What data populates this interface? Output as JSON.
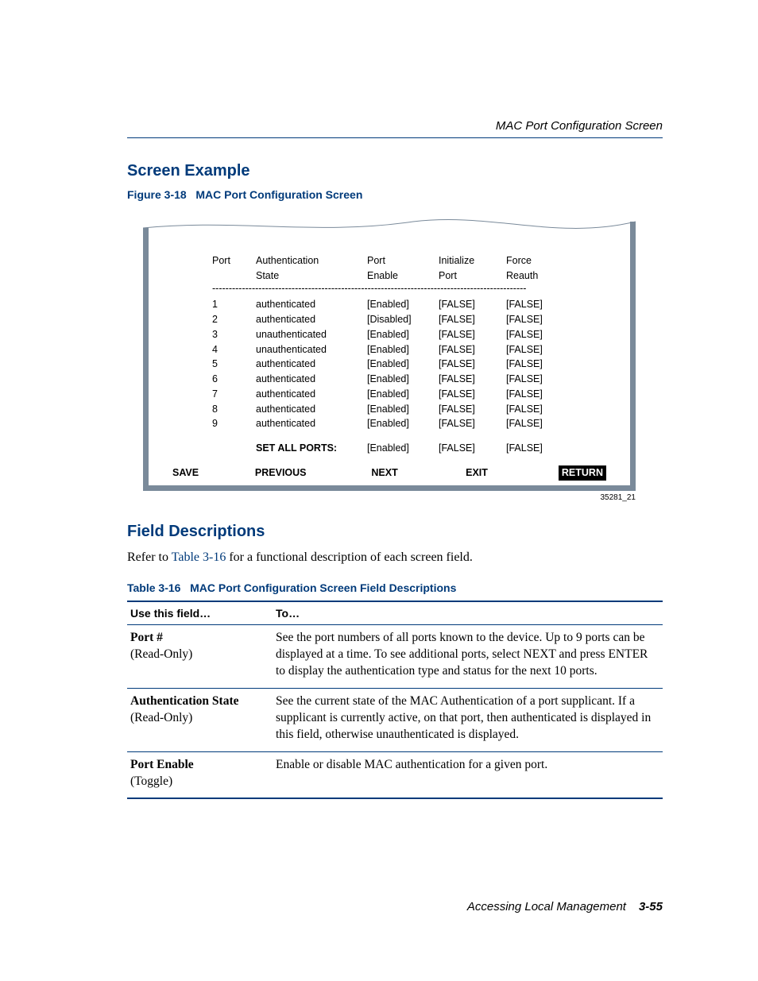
{
  "header": {
    "running_title": "MAC Port Configuration Screen"
  },
  "section1": {
    "title": "Screen Example"
  },
  "figure": {
    "caption_label": "Figure 3-18",
    "caption_text": "MAC Port Configuration Screen",
    "id": "35281_21",
    "headers": {
      "port": "Port",
      "auth_state_l1": "Authentication",
      "auth_state_l2": "State",
      "port_enable_l1": "Port",
      "port_enable_l2": "Enable",
      "init_l1": "Initialize",
      "init_l2": "Port",
      "force_l1": "Force",
      "force_l2": "Reauth"
    },
    "rows": [
      {
        "port": "1",
        "auth": "authenticated",
        "enable": "[Enabled]",
        "init": "[FALSE]",
        "force": "[FALSE]"
      },
      {
        "port": "2",
        "auth": "authenticated",
        "enable": "[Disabled]",
        "init": "[FALSE]",
        "force": "[FALSE]"
      },
      {
        "port": "3",
        "auth": "unauthenticated",
        "enable": "[Enabled]",
        "init": "[FALSE]",
        "force": "[FALSE]"
      },
      {
        "port": "4",
        "auth": "unauthenticated",
        "enable": "[Enabled]",
        "init": "[FALSE]",
        "force": "[FALSE]"
      },
      {
        "port": "5",
        "auth": "authenticated",
        "enable": "[Enabled]",
        "init": "[FALSE]",
        "force": "[FALSE]"
      },
      {
        "port": "6",
        "auth": "authenticated",
        "enable": "[Enabled]",
        "init": "[FALSE]",
        "force": "[FALSE]"
      },
      {
        "port": "7",
        "auth": "authenticated",
        "enable": "[Enabled]",
        "init": "[FALSE]",
        "force": "[FALSE]"
      },
      {
        "port": "8",
        "auth": "authenticated",
        "enable": "[Enabled]",
        "init": "[FALSE]",
        "force": "[FALSE]"
      },
      {
        "port": "9",
        "auth": "authenticated",
        "enable": "[Enabled]",
        "init": "[FALSE]",
        "force": "[FALSE]"
      }
    ],
    "setall": {
      "label": "SET ALL PORTS:",
      "enable": "[Enabled]",
      "init": "[FALSE]",
      "force": "[FALSE]"
    },
    "footer": {
      "save": "SAVE",
      "prev": "PREVIOUS",
      "next": "NEXT",
      "exit": "EXIT",
      "ret": "RETURN"
    },
    "dashes": "-----------------------------------------------------------------------------------------------"
  },
  "section2": {
    "title": "Field Descriptions",
    "intro_pre": "Refer to ",
    "intro_link": "Table 3-16",
    "intro_post": " for a functional description of each screen field."
  },
  "table": {
    "caption_label": "Table 3-16",
    "caption_text": "MAC Port Configuration Screen Field Descriptions",
    "col1": "Use this field…",
    "col2": "To…",
    "rows": [
      {
        "name": "Port #",
        "type": "(Read-Only)",
        "desc": "See the port numbers of all ports known to the device. Up to 9 ports can be displayed at a time. To see additional ports, select NEXT and press ENTER to display the authentication type and status for the next 10 ports."
      },
      {
        "name": "Authentication State",
        "type": "(Read-Only)",
        "desc": "See the current state of the MAC Authentication of a port supplicant. If a supplicant is currently active, on that port, then authenticated is displayed in this field, otherwise unauthenticated is displayed."
      },
      {
        "name": "Port Enable",
        "type": "(Toggle)",
        "desc": "Enable or disable MAC authentication for a given port."
      }
    ]
  },
  "pagefoot": {
    "section": "Accessing Local Management",
    "pageno": "3-55"
  }
}
